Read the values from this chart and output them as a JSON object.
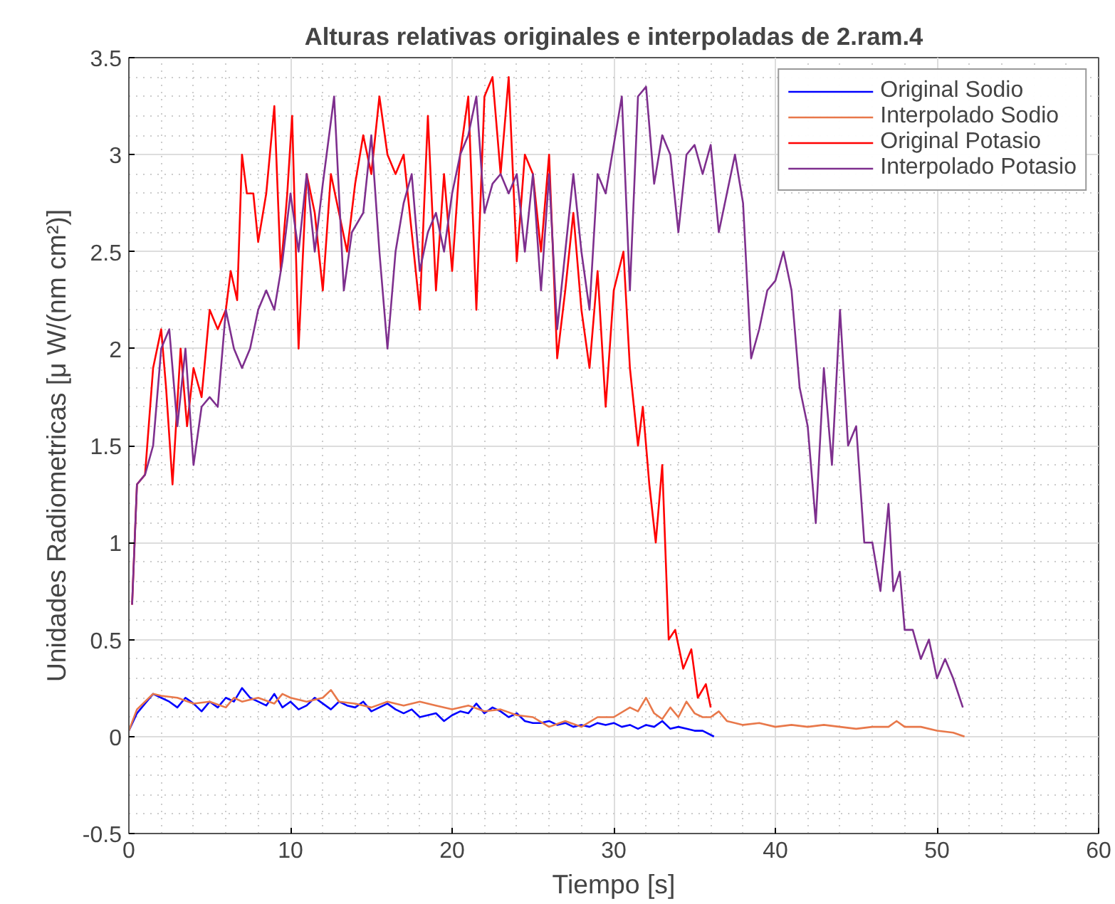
{
  "chart_data": {
    "type": "line",
    "title": "Alturas relativas originales e interpoladas de 2.ram.4",
    "xlabel": "Tiempo [s]",
    "ylabel": "Unidades Radiometricas [μ W/(nm cm²)]",
    "xlim": [
      0,
      60
    ],
    "ylim": [
      -0.5,
      3.5
    ],
    "xticks": [
      0,
      10,
      20,
      30,
      40,
      50,
      60
    ],
    "yticks": [
      -0.5,
      0,
      0.5,
      1,
      1.5,
      2,
      2.5,
      3,
      3.5
    ],
    "grid": true,
    "legend": "top right",
    "line_style": "solid",
    "marker": "none",
    "series": [
      {
        "name": "Original Sodio",
        "color": "#0000ff",
        "x": [
          0,
          0.5,
          1,
          1.5,
          2,
          2.5,
          3,
          3.5,
          4,
          4.5,
          5,
          5.5,
          6,
          6.5,
          7,
          7.5,
          8,
          8.5,
          9,
          9.5,
          10,
          10.5,
          11,
          11.5,
          12,
          12.5,
          13,
          13.5,
          14,
          14.5,
          15,
          15.5,
          16,
          16.5,
          17,
          17.5,
          18,
          18.5,
          19,
          19.5,
          20,
          20.5,
          21,
          21.5,
          22,
          22.5,
          23,
          23.5,
          24,
          24.5,
          25,
          25.5,
          26,
          26.5,
          27,
          27.5,
          28,
          28.5,
          29,
          29.5,
          30,
          30.5,
          31,
          31.5,
          32,
          32.5,
          33,
          33.5,
          34,
          34.5,
          35,
          35.5,
          36.2
        ],
        "values": [
          0.03,
          0.12,
          0.17,
          0.22,
          0.2,
          0.18,
          0.15,
          0.2,
          0.17,
          0.13,
          0.18,
          0.15,
          0.2,
          0.18,
          0.25,
          0.2,
          0.18,
          0.16,
          0.22,
          0.15,
          0.18,
          0.14,
          0.16,
          0.2,
          0.17,
          0.14,
          0.18,
          0.16,
          0.15,
          0.18,
          0.13,
          0.15,
          0.17,
          0.14,
          0.12,
          0.14,
          0.1,
          0.11,
          0.12,
          0.08,
          0.11,
          0.13,
          0.12,
          0.17,
          0.12,
          0.15,
          0.13,
          0.1,
          0.12,
          0.08,
          0.07,
          0.07,
          0.08,
          0.06,
          0.07,
          0.05,
          0.06,
          0.05,
          0.07,
          0.06,
          0.07,
          0.05,
          0.06,
          0.04,
          0.06,
          0.05,
          0.08,
          0.04,
          0.05,
          0.04,
          0.03,
          0.03,
          0.0
        ]
      },
      {
        "name": "Interpolado Sodio",
        "color": "#e8784a",
        "x": [
          0,
          0.5,
          1,
          1.5,
          2,
          3,
          4,
          5,
          6,
          6.5,
          7,
          8,
          9,
          9.5,
          10,
          11,
          12,
          12.5,
          13,
          14,
          15,
          16,
          17,
          18,
          19,
          20,
          21,
          22,
          23,
          24,
          25,
          26,
          27,
          28,
          29,
          30,
          31,
          31.5,
          32,
          32.5,
          33,
          33.5,
          34,
          34.5,
          35,
          35.5,
          36,
          36.5,
          37,
          38,
          39,
          40,
          41,
          42,
          43,
          44,
          45,
          46,
          47,
          47.5,
          48,
          49,
          50,
          51,
          51.7
        ],
        "values": [
          0.03,
          0.14,
          0.18,
          0.22,
          0.21,
          0.2,
          0.17,
          0.18,
          0.15,
          0.2,
          0.18,
          0.2,
          0.17,
          0.22,
          0.2,
          0.18,
          0.2,
          0.24,
          0.18,
          0.17,
          0.15,
          0.18,
          0.16,
          0.18,
          0.16,
          0.14,
          0.16,
          0.13,
          0.14,
          0.11,
          0.1,
          0.05,
          0.08,
          0.05,
          0.1,
          0.1,
          0.15,
          0.13,
          0.2,
          0.12,
          0.09,
          0.15,
          0.1,
          0.18,
          0.12,
          0.1,
          0.1,
          0.13,
          0.08,
          0.06,
          0.07,
          0.05,
          0.06,
          0.05,
          0.06,
          0.05,
          0.04,
          0.05,
          0.05,
          0.08,
          0.05,
          0.05,
          0.03,
          0.02,
          0.0
        ]
      },
      {
        "name": "Original Potasio",
        "color": "#ff0000",
        "x": [
          0.2,
          0.5,
          1.0,
          1.5,
          2.0,
          2.3,
          2.7,
          3.2,
          3.6,
          4.0,
          4.5,
          5.0,
          5.5,
          6.0,
          6.3,
          6.7,
          7.0,
          7.3,
          7.7,
          8.0,
          8.5,
          9.0,
          9.4,
          9.8,
          10.1,
          10.5,
          11.0,
          11.5,
          12.0,
          12.5,
          13.0,
          13.5,
          14.0,
          14.5,
          15.0,
          15.5,
          16.0,
          16.5,
          17.0,
          17.5,
          18.0,
          18.5,
          19.0,
          19.5,
          20.0,
          20.5,
          21.0,
          21.5,
          22.0,
          22.5,
          23.0,
          23.5,
          24.0,
          24.5,
          25.0,
          25.5,
          26.0,
          26.5,
          27.0,
          27.5,
          28.0,
          28.5,
          29.0,
          29.5,
          30.0,
          30.6,
          31.0,
          31.5,
          31.8,
          32.2,
          32.6,
          33.0,
          33.4,
          33.8,
          34.3,
          34.8,
          35.2,
          35.7,
          36.0
        ],
        "values": [
          0.68,
          1.3,
          1.35,
          1.9,
          2.1,
          1.8,
          1.3,
          2.0,
          1.6,
          1.9,
          1.75,
          2.2,
          2.1,
          2.2,
          2.4,
          2.25,
          3.0,
          2.8,
          2.8,
          2.55,
          2.8,
          3.25,
          2.4,
          2.8,
          3.2,
          2.0,
          2.9,
          2.7,
          2.3,
          2.9,
          2.7,
          2.5,
          2.85,
          3.1,
          2.9,
          3.3,
          3.0,
          2.9,
          3.0,
          2.6,
          2.2,
          3.2,
          2.3,
          2.9,
          2.4,
          3.0,
          3.3,
          2.2,
          3.3,
          3.4,
          2.9,
          3.4,
          2.45,
          3.0,
          2.9,
          2.5,
          3.0,
          1.95,
          2.3,
          2.7,
          2.2,
          1.9,
          2.4,
          1.7,
          2.3,
          2.5,
          1.9,
          1.5,
          1.7,
          1.3,
          1.0,
          1.4,
          0.5,
          0.55,
          0.35,
          0.45,
          0.2,
          0.27,
          0.15
        ]
      },
      {
        "name": "Interpolado Potasio",
        "color": "#7e2f8e",
        "x": [
          0.2,
          0.5,
          1.0,
          1.5,
          2.0,
          2.5,
          3.0,
          3.5,
          4.0,
          4.5,
          5.0,
          5.5,
          6.0,
          6.5,
          7.0,
          7.5,
          8.0,
          8.5,
          9.0,
          9.5,
          10.0,
          10.5,
          11.0,
          11.5,
          12.0,
          12.7,
          13.3,
          13.8,
          14.5,
          15.0,
          15.5,
          16.0,
          16.5,
          17.0,
          17.5,
          18.0,
          18.5,
          19.0,
          19.5,
          20.0,
          20.5,
          21.0,
          21.5,
          22.0,
          22.5,
          23.0,
          23.5,
          24.0,
          24.5,
          25.0,
          25.5,
          26.0,
          26.5,
          27.0,
          27.5,
          28.0,
          28.5,
          29.0,
          29.5,
          30.0,
          30.5,
          31.0,
          31.5,
          32.0,
          32.5,
          33.0,
          33.5,
          34.0,
          34.5,
          35.0,
          35.5,
          36.0,
          36.5,
          37.0,
          37.5,
          38.0,
          38.5,
          39.0,
          39.5,
          40.0,
          40.5,
          41.0,
          41.5,
          42.0,
          42.5,
          43.0,
          43.5,
          44.0,
          44.5,
          45.0,
          45.5,
          46.0,
          46.5,
          47.0,
          47.3,
          47.7,
          48.0,
          48.5,
          49.0,
          49.5,
          50.0,
          50.5,
          51.0,
          51.6
        ],
        "values": [
          0.68,
          1.3,
          1.35,
          1.5,
          2.0,
          2.1,
          1.6,
          2.0,
          1.4,
          1.7,
          1.75,
          1.7,
          2.2,
          2.0,
          1.9,
          2.0,
          2.2,
          2.3,
          2.2,
          2.45,
          2.8,
          2.5,
          2.9,
          2.5,
          2.85,
          3.3,
          2.3,
          2.6,
          2.7,
          3.1,
          2.5,
          2.0,
          2.5,
          2.75,
          2.9,
          2.4,
          2.6,
          2.7,
          2.5,
          2.8,
          3.0,
          3.1,
          3.3,
          2.7,
          2.85,
          2.9,
          2.8,
          2.9,
          2.5,
          2.9,
          2.3,
          2.9,
          2.1,
          2.5,
          2.9,
          2.5,
          2.2,
          2.9,
          2.8,
          3.05,
          3.3,
          2.3,
          3.3,
          3.35,
          2.85,
          3.1,
          3.0,
          2.6,
          3.0,
          3.05,
          2.9,
          3.05,
          2.6,
          2.8,
          3.0,
          2.75,
          1.95,
          2.1,
          2.3,
          2.35,
          2.5,
          2.3,
          1.8,
          1.6,
          1.1,
          1.9,
          1.4,
          2.2,
          1.5,
          1.6,
          1.0,
          1.0,
          0.75,
          1.2,
          0.75,
          0.85,
          0.55,
          0.55,
          0.4,
          0.5,
          0.3,
          0.4,
          0.3,
          0.15
        ]
      }
    ]
  }
}
